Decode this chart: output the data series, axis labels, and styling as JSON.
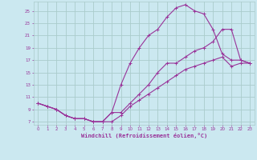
{
  "xlabel": "Windchill (Refroidissement éolien,°C)",
  "bg_color": "#cbe8f0",
  "line_color": "#993399",
  "grid_color": "#aacccc",
  "xlim": [
    -0.5,
    23.5
  ],
  "ylim": [
    6.5,
    26.5
  ],
  "xticks": [
    0,
    1,
    2,
    3,
    4,
    5,
    6,
    7,
    8,
    9,
    10,
    11,
    12,
    13,
    14,
    15,
    16,
    17,
    18,
    19,
    20,
    21,
    22,
    23
  ],
  "yticks": [
    7,
    9,
    11,
    13,
    15,
    17,
    19,
    21,
    23,
    25
  ],
  "line1_x": [
    0,
    1,
    2,
    3,
    4,
    5,
    6,
    7,
    8,
    9,
    10,
    11,
    12,
    13,
    14,
    15,
    16,
    17,
    18,
    19,
    20,
    21,
    22,
    23
  ],
  "line1_y": [
    10,
    9.5,
    9,
    8,
    7.5,
    7.5,
    7,
    7,
    8.5,
    13,
    16.5,
    19,
    21,
    22,
    24,
    25.5,
    26,
    25,
    24.5,
    22,
    18,
    17,
    17,
    16.5
  ],
  "line2_x": [
    0,
    1,
    2,
    3,
    4,
    5,
    6,
    7,
    8,
    9,
    10,
    11,
    12,
    13,
    14,
    15,
    16,
    17,
    18,
    19,
    20,
    21,
    22,
    23
  ],
  "line2_y": [
    10,
    9.5,
    9,
    8,
    7.5,
    7.5,
    7,
    7,
    8.5,
    8.5,
    10,
    11.5,
    13,
    15,
    16.5,
    16.5,
    17.5,
    18.5,
    19,
    20,
    22,
    22,
    17,
    16.5
  ],
  "line3_x": [
    0,
    1,
    2,
    3,
    4,
    5,
    6,
    7,
    8,
    9,
    10,
    11,
    12,
    13,
    14,
    15,
    16,
    17,
    18,
    19,
    20,
    21,
    22,
    23
  ],
  "line3_y": [
    10,
    9.5,
    9,
    8,
    7.5,
    7.5,
    7,
    7,
    7,
    8,
    9.5,
    10.5,
    11.5,
    12.5,
    13.5,
    14.5,
    15.5,
    16,
    16.5,
    17,
    17.5,
    16,
    16.5,
    16.5
  ]
}
